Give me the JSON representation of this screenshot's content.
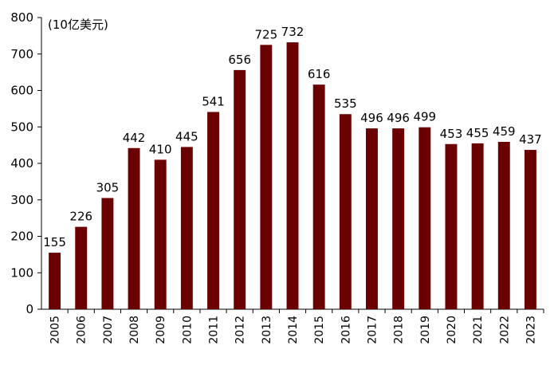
{
  "chart_data": {
    "type": "bar",
    "unit_label": "(10亿美元)",
    "categories": [
      "2005",
      "2006",
      "2007",
      "2008",
      "2009",
      "2010",
      "2011",
      "2012",
      "2013",
      "2014",
      "2015",
      "2016",
      "2017",
      "2018",
      "2019",
      "2020",
      "2021",
      "2022",
      "2023"
    ],
    "values": [
      155,
      226,
      305,
      442,
      410,
      445,
      541,
      656,
      725,
      732,
      616,
      535,
      496,
      496,
      499,
      453,
      455,
      459,
      437
    ],
    "ylim": [
      0,
      800
    ],
    "yticks": [
      0,
      100,
      200,
      300,
      400,
      500,
      600,
      700,
      800
    ],
    "grid": false,
    "legend": "none",
    "bar_color": "#6b0000"
  }
}
